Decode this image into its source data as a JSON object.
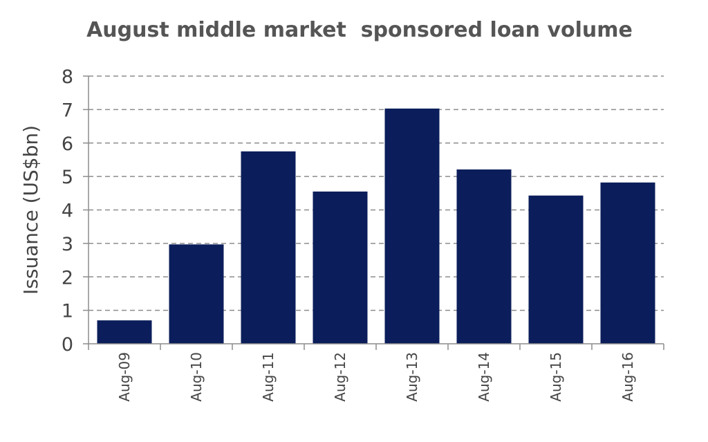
{
  "chart_data": {
    "type": "bar",
    "title": "August middle market  sponsored loan volume",
    "xlabel": "",
    "ylabel": "Issuance (US$bn)",
    "categories": [
      "Aug-09",
      "Aug-10",
      "Aug-11",
      "Aug-12",
      "Aug-13",
      "Aug-14",
      "Aug-15",
      "Aug-16"
    ],
    "values": [
      0.7,
      2.97,
      5.75,
      4.55,
      7.03,
      5.21,
      4.43,
      4.82
    ],
    "ylim": [
      0,
      8
    ],
    "yticks": [
      "0",
      "1",
      "2",
      "3",
      "4",
      "5",
      "6",
      "7",
      "8"
    ],
    "grid": true,
    "grid_style": "dashed",
    "bar_color": "#0b1e5b",
    "legend": "none"
  }
}
